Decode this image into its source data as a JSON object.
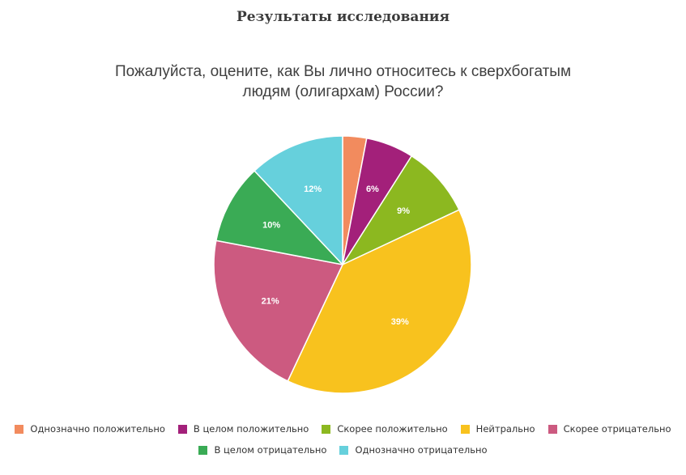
{
  "page": {
    "heading": "Результаты исследования"
  },
  "chart_data": {
    "type": "pie",
    "title_lines": [
      "Пожалуйста, оцените, как Вы лично относитесь к сверхбогатым",
      "людям (олигархам) России?"
    ],
    "unit": "%",
    "slices": [
      {
        "name": "Однозначно положительно",
        "value": 3,
        "label": "",
        "color": "#f28b5e"
      },
      {
        "name": "В целом положительно",
        "value": 6,
        "label": "6%",
        "color": "#a3207a"
      },
      {
        "name": "Скорее положительно",
        "value": 9,
        "label": "9%",
        "color": "#8cb820"
      },
      {
        "name": "Нейтрально",
        "value": 39,
        "label": "39%",
        "color": "#f8c21e"
      },
      {
        "name": "Скорее отрицательно",
        "value": 21,
        "label": "21%",
        "color": "#cc5a80"
      },
      {
        "name": "В целом отрицательно",
        "value": 10,
        "label": "10%",
        "color": "#3aab55"
      },
      {
        "name": "Однозначно отрицательно",
        "value": 12,
        "label": "12%",
        "color": "#66d0dc"
      }
    ],
    "start": "12 o'clock",
    "direction": "clockwise",
    "legend_position": "bottom"
  }
}
